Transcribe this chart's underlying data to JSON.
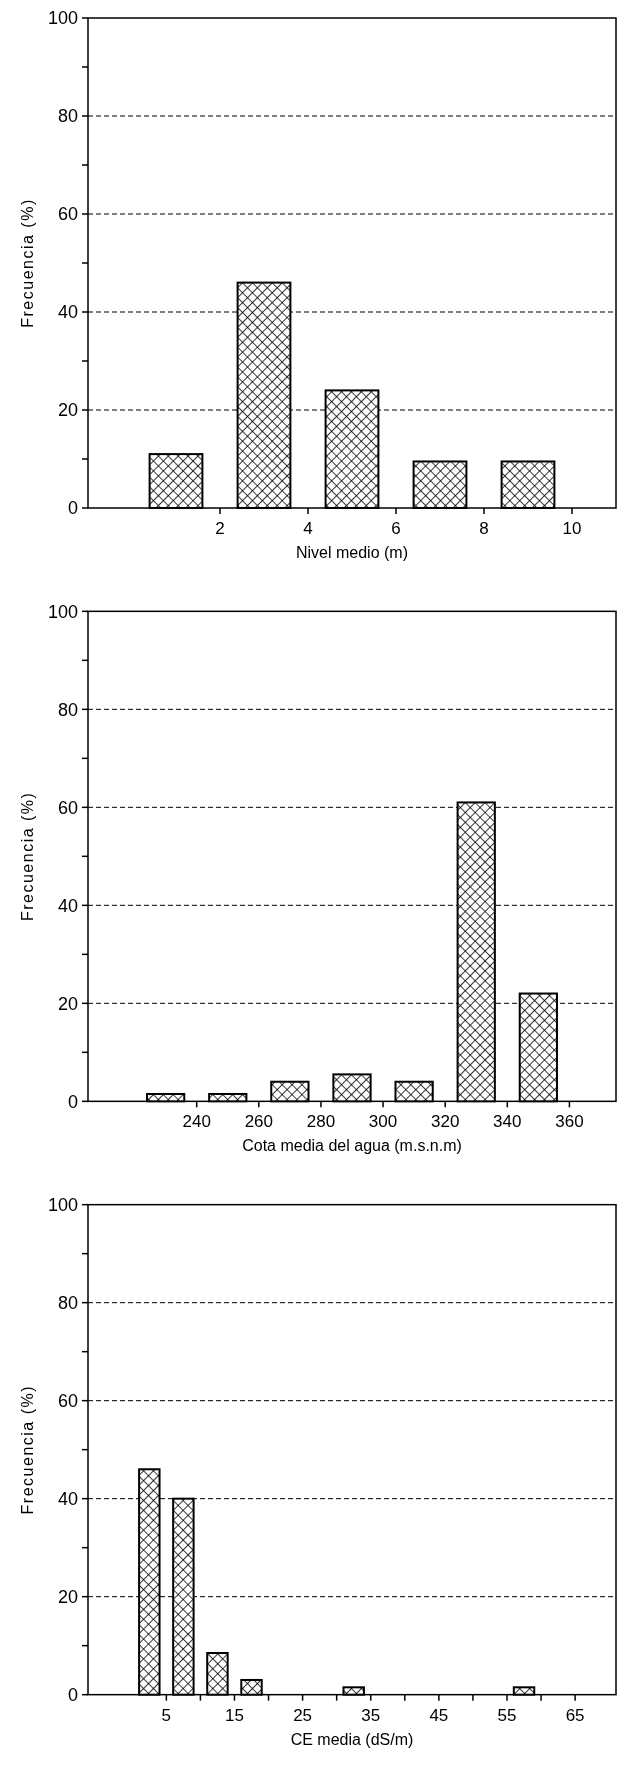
{
  "chart_data": [
    {
      "type": "histogram",
      "xlabel": "Nivel medio (m)",
      "ylabel": "Frecuencia (%)",
      "bins": [
        0,
        2,
        4,
        6,
        8,
        10
      ],
      "values": [
        11,
        46,
        24,
        9.5,
        9.5
      ],
      "color": "#000000",
      "xlim": [
        -1,
        11
      ],
      "xticks": [
        2,
        4,
        6,
        8,
        10
      ],
      "ylim": [
        0,
        100
      ],
      "yticks": [
        0,
        {
          "value": 10,
          "label": null
        },
        20,
        {
          "value": 30,
          "label": null
        },
        40,
        {
          "value": 50,
          "label": null
        },
        60,
        {
          "value": 70,
          "label": null
        },
        80,
        {
          "value": 90,
          "label": null
        },
        100
      ],
      "grid": "y"
    },
    {
      "type": "histogram",
      "xlabel": "Cota media del agua (m.s.n.m)",
      "ylabel": "Frecuencia (%)",
      "bins": [
        220,
        240,
        260,
        280,
        300,
        320,
        340,
        360
      ],
      "values": [
        1.5,
        1.5,
        4,
        5.5,
        4,
        61,
        22
      ],
      "color": "#000000",
      "xlim": [
        205,
        375
      ],
      "xticks": [
        240,
        260,
        280,
        300,
        320,
        340,
        360
      ],
      "ylim": [
        0,
        100
      ],
      "yticks": [
        0,
        {
          "value": 10,
          "label": null
        },
        20,
        {
          "value": 30,
          "label": null
        },
        40,
        {
          "value": 50,
          "label": null
        },
        60,
        {
          "value": 70,
          "label": null
        },
        80,
        {
          "value": 90,
          "label": null
        },
        100
      ],
      "grid": "y"
    },
    {
      "type": "histogram",
      "xlabel": "CE media (dS/m)",
      "ylabel": "Frecuencia (%)",
      "bins": [
        0,
        5,
        10,
        15,
        20,
        25,
        30,
        35,
        40,
        45,
        50,
        55,
        60
      ],
      "values": [
        46,
        40,
        8.5,
        3,
        0,
        0,
        1.5,
        0,
        0,
        0,
        0,
        1.5
      ],
      "color": "#000000",
      "xlim": [
        -6.5,
        71
      ],
      "xticks": [
        5,
        {
          "value": 10,
          "label": null
        },
        15,
        {
          "value": 20,
          "label": null
        },
        25,
        {
          "value": 30,
          "label": null
        },
        35,
        {
          "value": 40,
          "label": null
        },
        45,
        {
          "value": 50,
          "label": null
        },
        55,
        {
          "value": 60,
          "label": null
        },
        65
      ],
      "ylim": [
        0,
        100
      ],
      "yticks": [
        0,
        {
          "value": 10,
          "label": null
        },
        20,
        {
          "value": 30,
          "label": null
        },
        40,
        {
          "value": 50,
          "label": null
        },
        60,
        {
          "value": 70,
          "label": null
        },
        80,
        {
          "value": 90,
          "label": null
        },
        100
      ],
      "grid": "y"
    }
  ]
}
